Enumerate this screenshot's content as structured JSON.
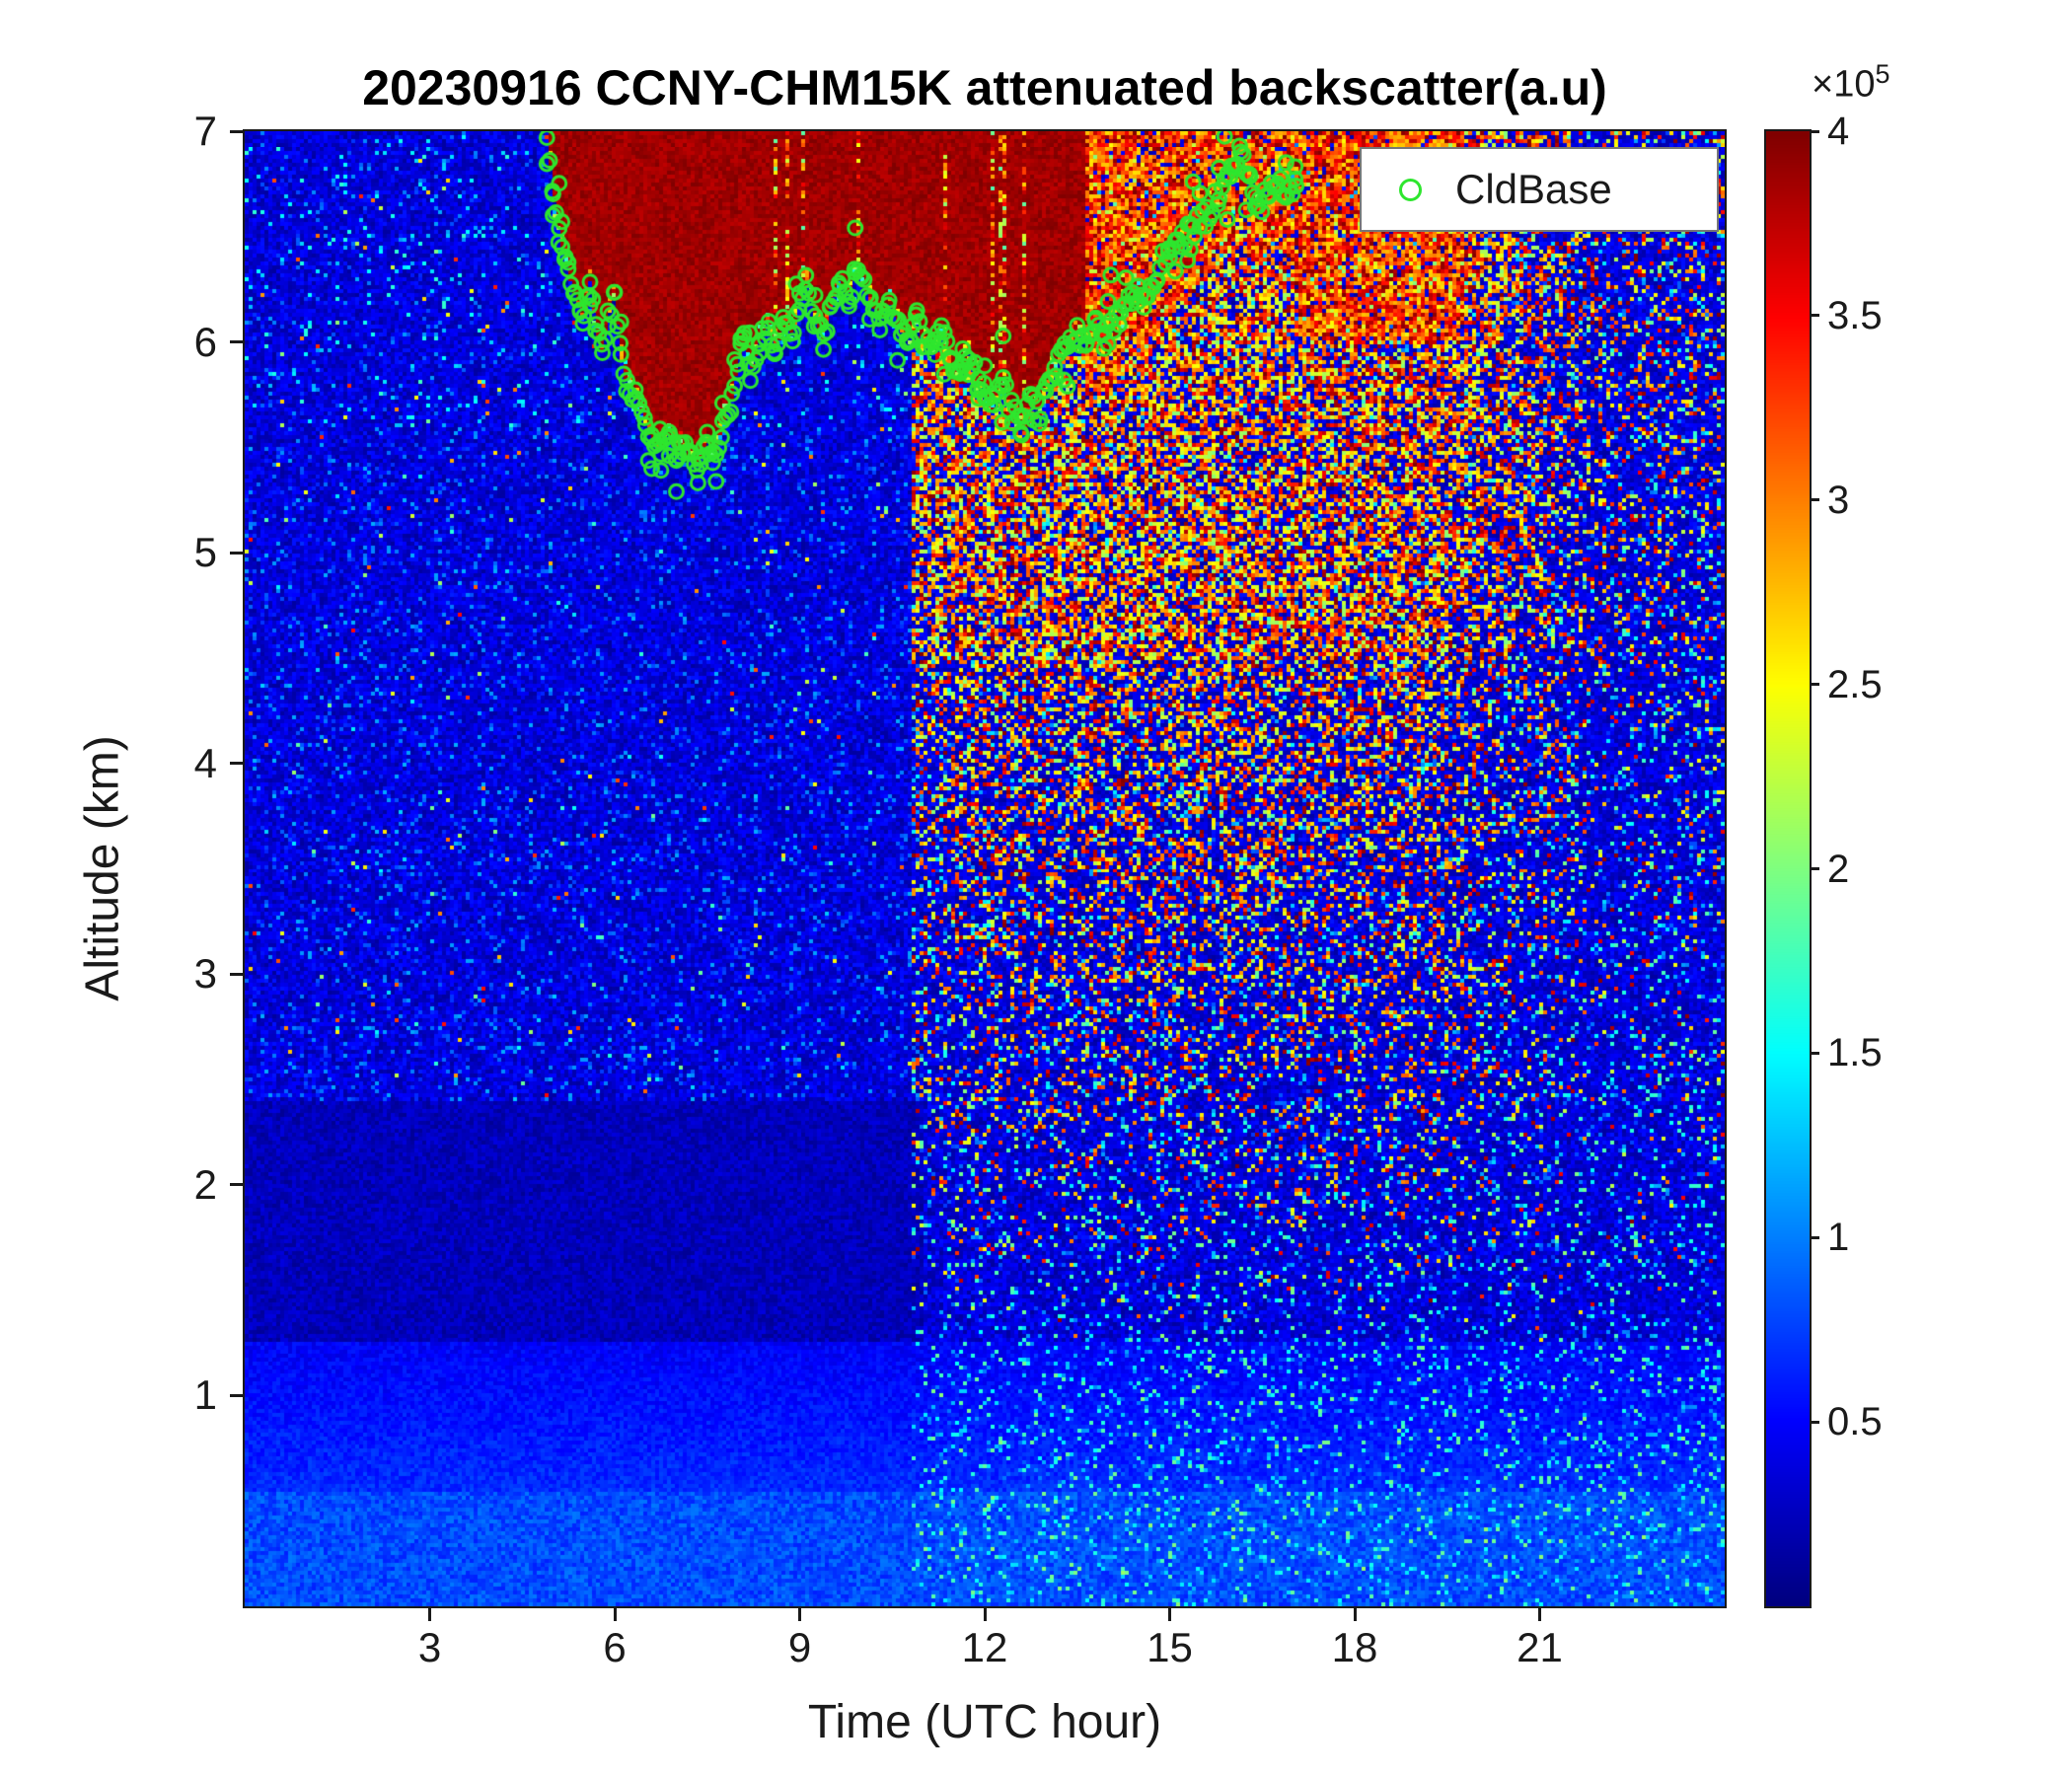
{
  "title": "20230916 CCNY-CHM15K attenuated backscatter(a.u)",
  "legend": {
    "label": "CldBase",
    "marker_color": "#2ee62e"
  },
  "colorbar": {
    "exp_base": "×10",
    "exp_power": "5",
    "tick_labels": [
      "0.5",
      "1",
      "1.5",
      "2",
      "2.5",
      "3",
      "3.5",
      "4"
    ],
    "tick_values": [
      0.5,
      1,
      1.5,
      2,
      2.5,
      3,
      3.5,
      4
    ],
    "range": [
      0,
      4
    ]
  },
  "chart_data": {
    "type": "heatmap",
    "title": "20230916 CCNY-CHM15K attenuated backscatter(a.u)",
    "xlabel": "Time (UTC hour)",
    "ylabel": "Altitude (km)",
    "x_range": [
      0,
      24
    ],
    "y_range": [
      0,
      7
    ],
    "x_ticks": [
      3,
      6,
      9,
      12,
      15,
      18,
      21
    ],
    "y_ticks": [
      1,
      2,
      3,
      4,
      5,
      6,
      7
    ],
    "colormap": "jet",
    "value_units": "a.u. (x10^5)",
    "colorbar_range": [
      0,
      4
    ],
    "colorbar_ticks": [
      0.5,
      1,
      1.5,
      2,
      2.5,
      3,
      3.5,
      4
    ],
    "regions": [
      {
        "name": "optically-thick-cloud",
        "t_range": [
          4.9,
          13.6
        ],
        "z_range": [
          "cloud_base",
          7
        ],
        "value": "saturated ~4e5"
      },
      {
        "name": "broken-cloud-speckle",
        "t_range": [
          13.6,
          19.8
        ],
        "z_range": [
          5.5,
          7
        ],
        "value": "mixed 2.5-4e5"
      },
      {
        "name": "elevated-speckle-right-half",
        "t_range": [
          10.8,
          24
        ],
        "z_range": [
          1.5,
          7
        ],
        "value": "sparse 2-4e5 over low background"
      },
      {
        "name": "boundary-layer-aerosol",
        "t_range": [
          0,
          24
        ],
        "z_range": [
          0,
          1.25
        ],
        "value": "~0.5-1e5"
      },
      {
        "name": "clean-dark-layer-left",
        "t_range": [
          0,
          11
        ],
        "z_range": [
          1.25,
          2.4
        ],
        "value": "<0.4e5"
      }
    ],
    "cloud_base_series": {
      "name": "CldBase",
      "points": [
        [
          4.9,
          7.0
        ],
        [
          5.0,
          6.72
        ],
        [
          5.1,
          6.5
        ],
        [
          5.2,
          6.38
        ],
        [
          5.35,
          6.22
        ],
        [
          5.5,
          6.1
        ],
        [
          5.6,
          6.28
        ],
        [
          5.7,
          6.05
        ],
        [
          5.8,
          5.95
        ],
        [
          5.9,
          6.12
        ],
        [
          6.0,
          6.22
        ],
        [
          6.1,
          5.92
        ],
        [
          6.2,
          5.8
        ],
        [
          6.35,
          5.75
        ],
        [
          6.5,
          5.62
        ],
        [
          6.6,
          5.52
        ],
        [
          6.75,
          5.5
        ],
        [
          6.9,
          5.56
        ],
        [
          7.0,
          5.45
        ],
        [
          7.1,
          5.52
        ],
        [
          7.2,
          5.44
        ],
        [
          7.35,
          5.4
        ],
        [
          7.5,
          5.55
        ],
        [
          7.6,
          5.44
        ],
        [
          7.75,
          5.6
        ],
        [
          7.9,
          5.72
        ],
        [
          8.0,
          5.9
        ],
        [
          8.1,
          6.0
        ],
        [
          8.2,
          5.85
        ],
        [
          8.35,
          6.0
        ],
        [
          8.5,
          6.1
        ],
        [
          8.6,
          5.95
        ],
        [
          8.75,
          6.08
        ],
        [
          8.9,
          6.03
        ],
        [
          9.0,
          6.2
        ],
        [
          9.1,
          6.3
        ],
        [
          9.25,
          6.1
        ],
        [
          9.4,
          6.0
        ],
        [
          9.5,
          6.15
        ],
        [
          9.65,
          6.3
        ],
        [
          9.8,
          6.2
        ],
        [
          9.9,
          6.33
        ],
        [
          10.0,
          6.28
        ],
        [
          10.15,
          6.2
        ],
        [
          10.3,
          6.1
        ],
        [
          10.45,
          6.18
        ],
        [
          10.6,
          6.08
        ],
        [
          10.75,
          6.0
        ],
        [
          10.9,
          6.1
        ],
        [
          11.0,
          6.0
        ],
        [
          11.15,
          5.95
        ],
        [
          11.3,
          6.05
        ],
        [
          11.45,
          5.9
        ],
        [
          11.6,
          5.85
        ],
        [
          11.75,
          5.95
        ],
        [
          11.9,
          5.8
        ],
        [
          12.0,
          5.75
        ],
        [
          12.15,
          5.7
        ],
        [
          12.3,
          5.8
        ],
        [
          12.45,
          5.66
        ],
        [
          12.6,
          5.6
        ],
        [
          12.75,
          5.74
        ],
        [
          12.9,
          5.65
        ],
        [
          13.0,
          5.8
        ],
        [
          13.15,
          5.88
        ],
        [
          13.3,
          5.98
        ],
        [
          13.5,
          6.04
        ],
        [
          13.65,
          6.0
        ],
        [
          13.8,
          6.08
        ],
        [
          14.0,
          6.04
        ],
        [
          14.2,
          6.14
        ],
        [
          14.4,
          6.24
        ],
        [
          14.6,
          6.2
        ],
        [
          14.8,
          6.34
        ],
        [
          15.0,
          6.44
        ],
        [
          15.2,
          6.5
        ],
        [
          15.4,
          6.55
        ],
        [
          15.6,
          6.6
        ],
        [
          15.8,
          6.7
        ],
        [
          16.0,
          6.8
        ],
        [
          16.15,
          6.93
        ],
        [
          16.3,
          6.75
        ],
        [
          16.45,
          6.65
        ],
        [
          16.6,
          6.7
        ],
        [
          16.75,
          6.8
        ],
        [
          16.9,
          6.7
        ],
        [
          17.05,
          6.74
        ]
      ]
    }
  }
}
